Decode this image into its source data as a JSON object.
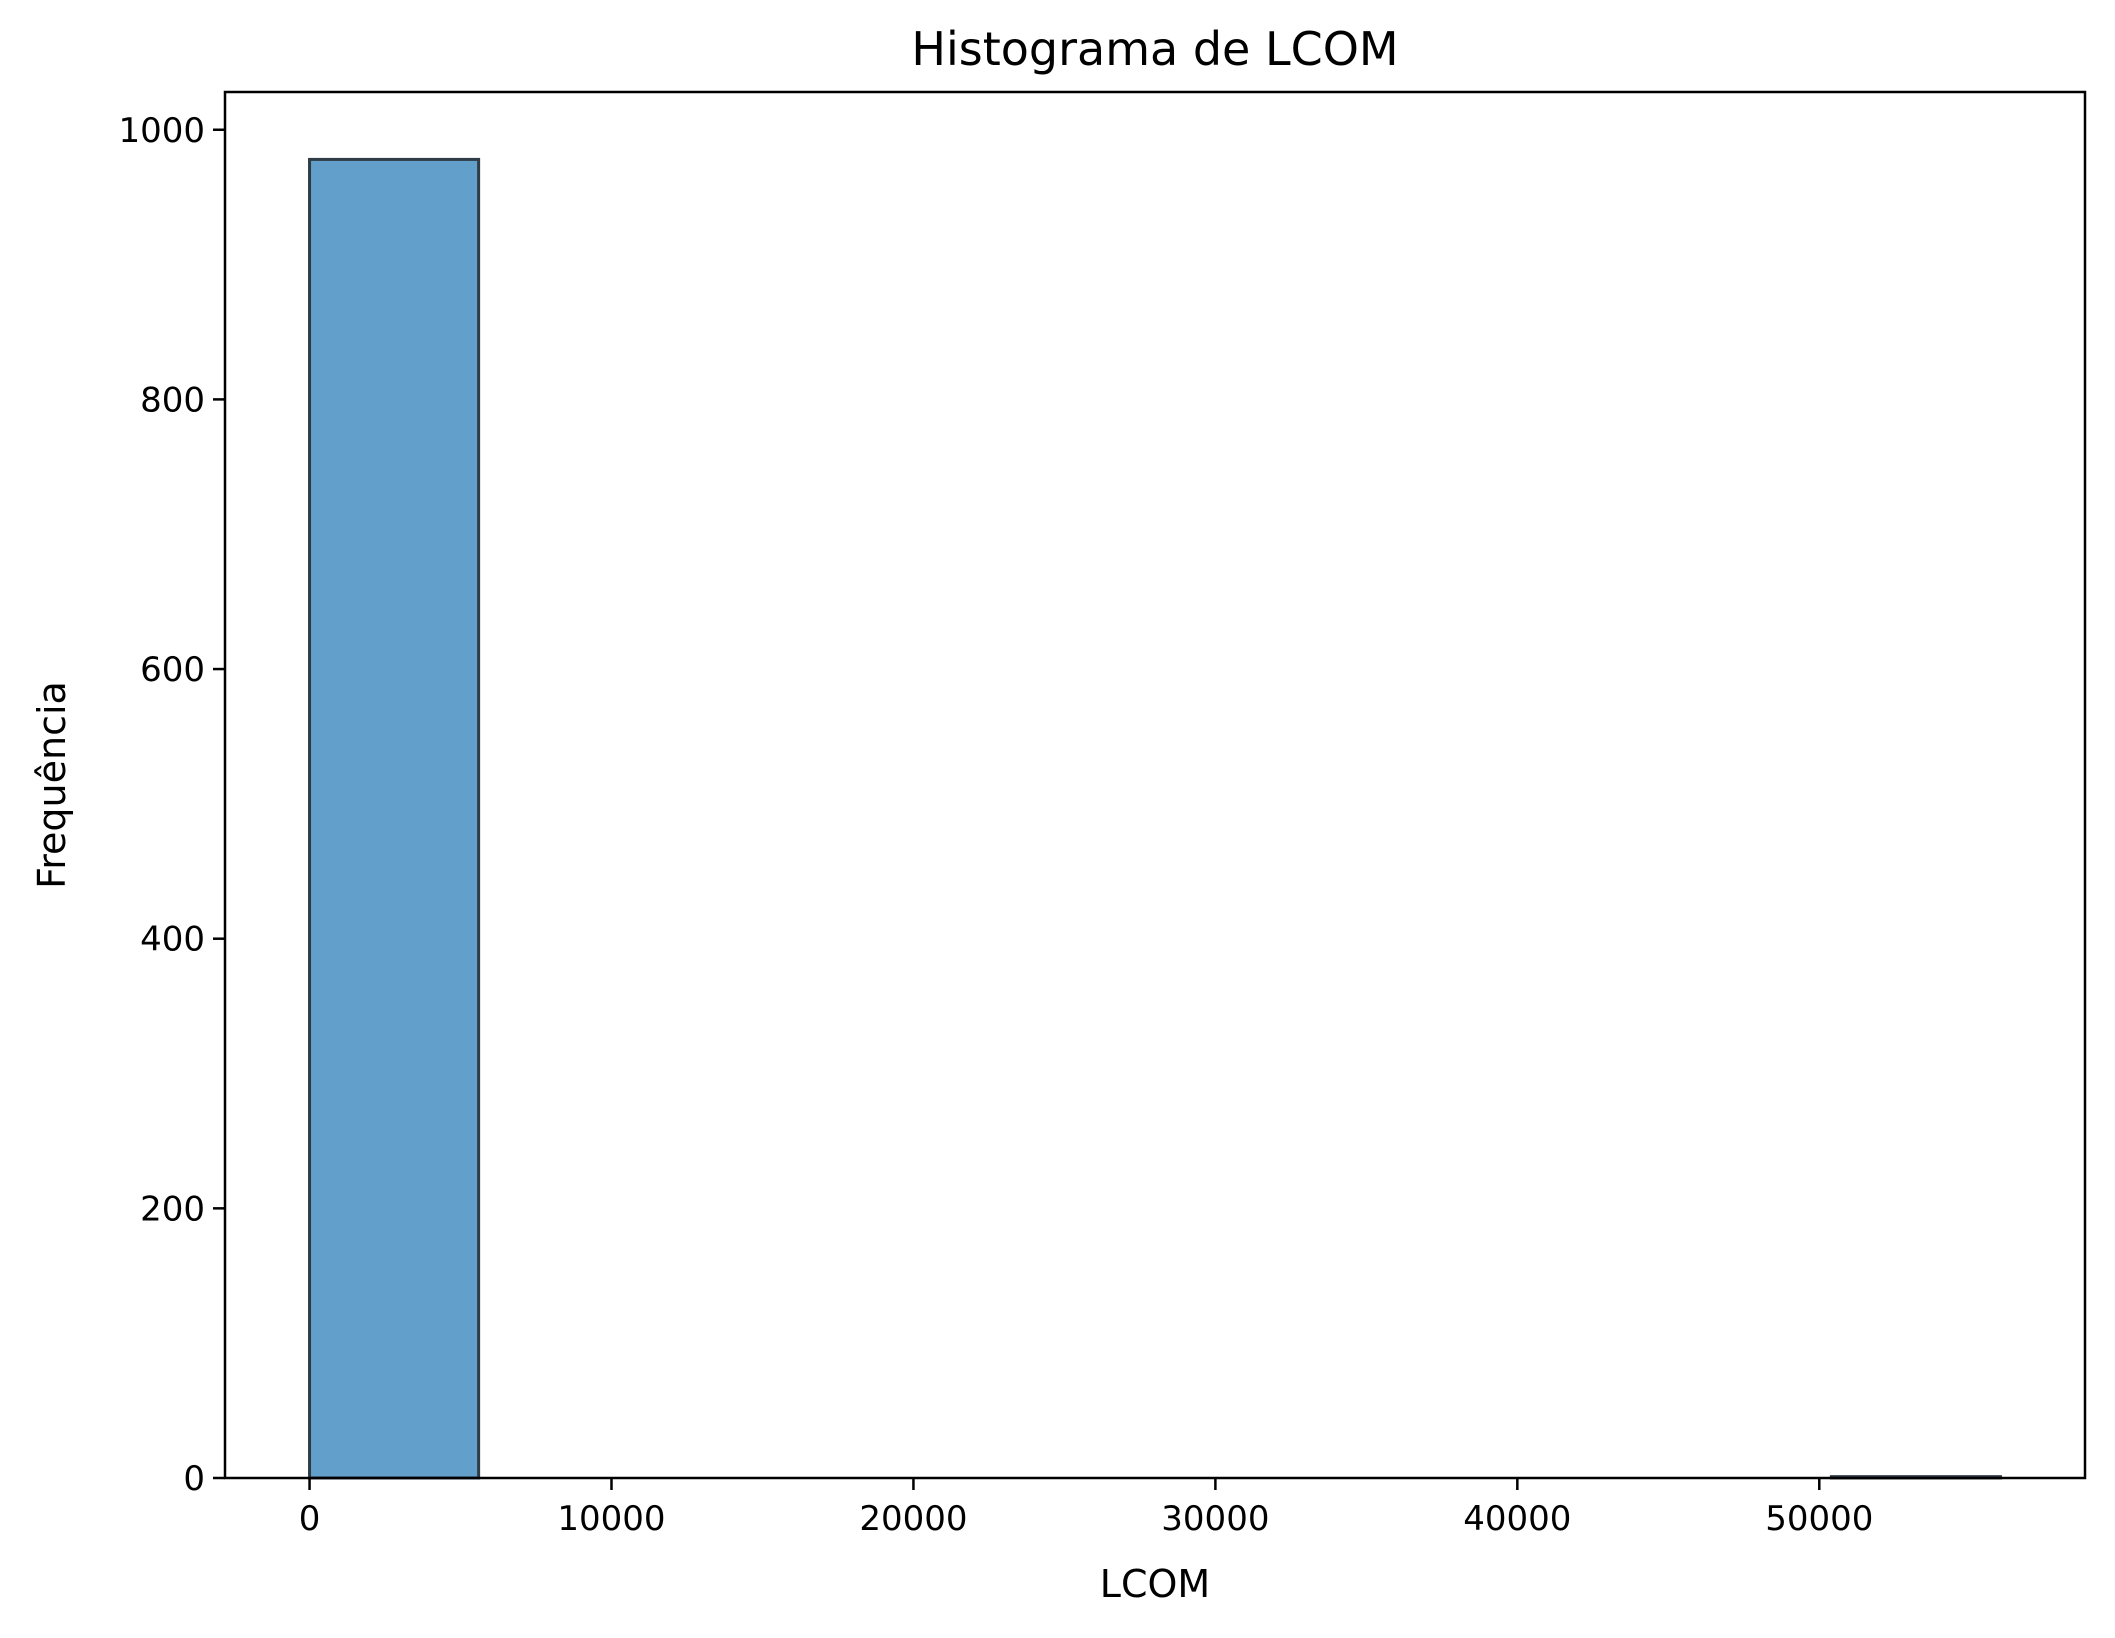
{
  "chart_data": {
    "type": "bar",
    "title": "Histograma de LCOM",
    "xlabel": "LCOM",
    "ylabel": "Frequência",
    "xlim": [
      -2800,
      58800
    ],
    "ylim": [
      0,
      1028
    ],
    "x_ticks": [
      0,
      10000,
      20000,
      30000,
      40000,
      50000
    ],
    "y_ticks": [
      0,
      200,
      400,
      600,
      800,
      1000
    ],
    "bins": [
      {
        "start": 0,
        "end": 5600,
        "value": 978
      },
      {
        "start": 5600,
        "end": 11200,
        "value": 0
      },
      {
        "start": 11200,
        "end": 16800,
        "value": 0
      },
      {
        "start": 16800,
        "end": 22400,
        "value": 0
      },
      {
        "start": 22400,
        "end": 28000,
        "value": 0
      },
      {
        "start": 28000,
        "end": 33600,
        "value": 0
      },
      {
        "start": 33600,
        "end": 39200,
        "value": 0
      },
      {
        "start": 39200,
        "end": 44800,
        "value": 0
      },
      {
        "start": 44800,
        "end": 50400,
        "value": 0
      },
      {
        "start": 50400,
        "end": 56000,
        "value": 1
      }
    ],
    "bar_color": "#62a0cb",
    "edge_color": "#2f3b45",
    "grid": false,
    "legend": false
  }
}
